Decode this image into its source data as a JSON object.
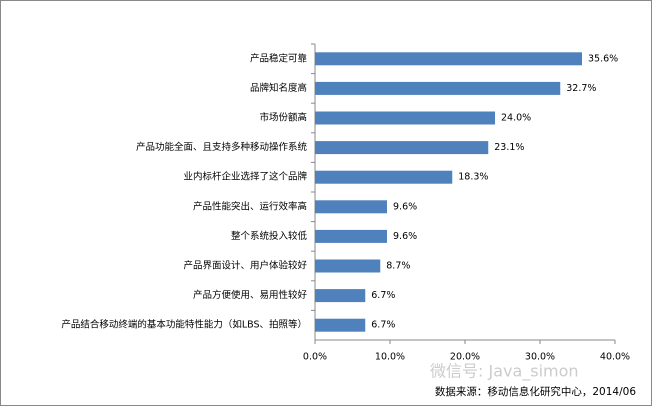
{
  "chart_data": {
    "type": "bar",
    "orientation": "horizontal",
    "categories": [
      "产品稳定可靠",
      "品牌知名度高",
      "市场份额高",
      "产品功能全面、且支持多种移动操作系统",
      "业内标杆企业选择了这个品牌",
      "产品性能突出、运行效率高",
      "整个系统投入较低",
      "产品界面设计、用户体验较好",
      "产品方便使用、易用性较好",
      "产品结合移动终端的基本功能特性能力（如LBS、拍照等）"
    ],
    "values": [
      35.6,
      32.7,
      24.0,
      23.1,
      18.3,
      9.6,
      9.6,
      8.7,
      6.7,
      6.7
    ],
    "value_labels": [
      "35.6%",
      "32.7%",
      "24.0%",
      "23.1%",
      "18.3%",
      "9.6%",
      "9.6%",
      "8.7%",
      "6.7%",
      "6.7%"
    ],
    "color": "#4f81bd",
    "xlim": [
      0,
      40
    ],
    "xticks": [
      {
        "value": 0,
        "label": "0.0%"
      },
      {
        "value": 10,
        "label": "10.0%"
      },
      {
        "value": 20,
        "label": "20.0%"
      },
      {
        "value": 30,
        "label": "30.0%"
      },
      {
        "value": 40,
        "label": "40.0%"
      }
    ],
    "source": "数据来源：移动信息化研究中心，2014/06",
    "watermark": "微信号: Java_simon"
  }
}
